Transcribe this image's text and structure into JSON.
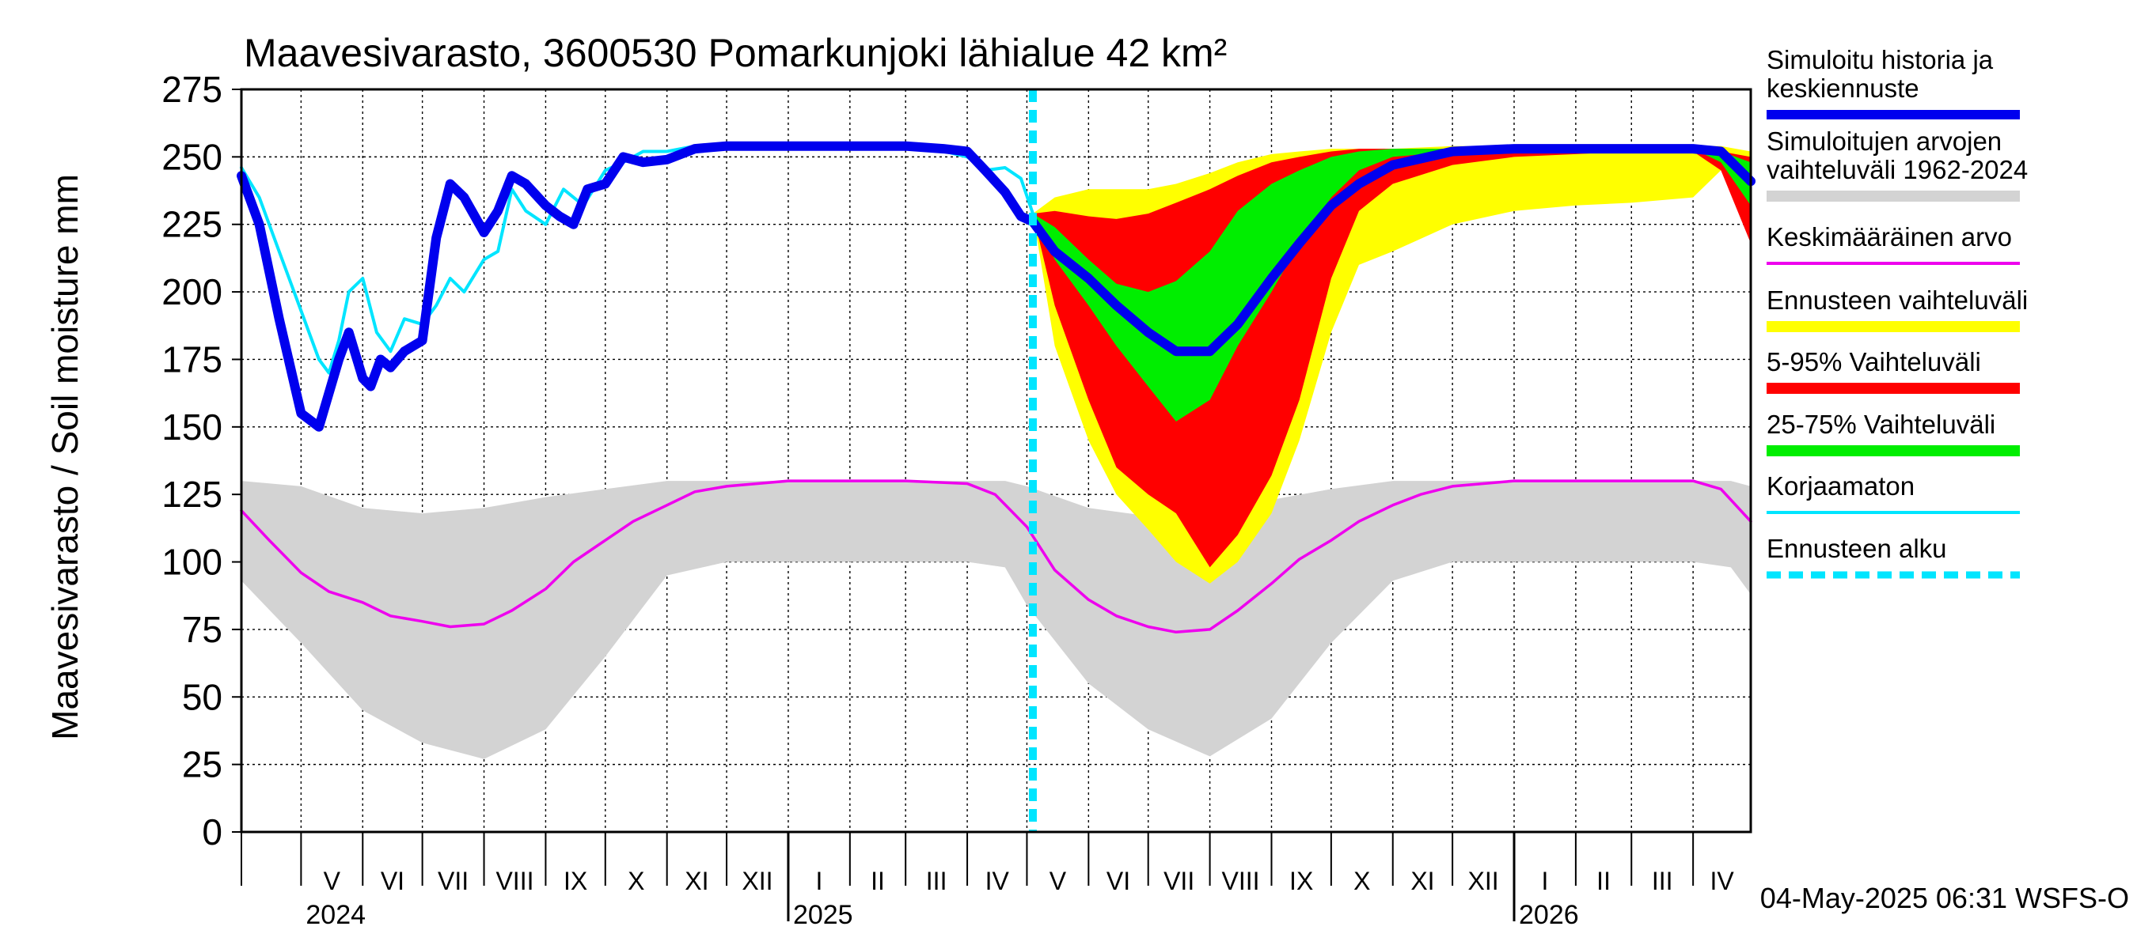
{
  "chart_data": {
    "type": "area",
    "title": "Maavesivarasto, 3600530 Pomarkunjoki lähialue 42 km²",
    "ylabel": "Maavesivarasto / Soil moisture   mm",
    "ylim": [
      0,
      275
    ],
    "yticks": [
      0,
      25,
      50,
      75,
      100,
      125,
      150,
      175,
      200,
      225,
      250,
      275
    ],
    "xlim": [
      "2024-04-01",
      "2026-04-30"
    ],
    "grid": true,
    "legend_position": "right",
    "timestamp": "04-May-2025 06:31 WSFS-O",
    "forecast_start": "2025-05-04",
    "month_labels": [
      {
        "label": "V",
        "start": "2024-05-01"
      },
      {
        "label": "VI",
        "start": "2024-06-01"
      },
      {
        "label": "VII",
        "start": "2024-07-01"
      },
      {
        "label": "VIII",
        "start": "2024-08-01"
      },
      {
        "label": "IX",
        "start": "2024-09-01"
      },
      {
        "label": "X",
        "start": "2024-10-01"
      },
      {
        "label": "XI",
        "start": "2024-11-01"
      },
      {
        "label": "XII",
        "start": "2024-12-01"
      },
      {
        "label": "I",
        "start": "2025-01-01"
      },
      {
        "label": "II",
        "start": "2025-02-01"
      },
      {
        "label": "III",
        "start": "2025-03-01"
      },
      {
        "label": "IV",
        "start": "2025-04-01"
      },
      {
        "label": "V",
        "start": "2025-05-01"
      },
      {
        "label": "VI",
        "start": "2025-06-01"
      },
      {
        "label": "VII",
        "start": "2025-07-01"
      },
      {
        "label": "VIII",
        "start": "2025-08-01"
      },
      {
        "label": "IX",
        "start": "2025-09-01"
      },
      {
        "label": "X",
        "start": "2025-10-01"
      },
      {
        "label": "XI",
        "start": "2025-11-01"
      },
      {
        "label": "XII",
        "start": "2025-12-01"
      },
      {
        "label": "I",
        "start": "2026-01-01"
      },
      {
        "label": "II",
        "start": "2026-02-01"
      },
      {
        "label": "III",
        "start": "2026-03-01"
      },
      {
        "label": "IV",
        "start": "2026-04-01"
      }
    ],
    "year_labels": [
      {
        "label": "2024",
        "date": "2024-05-01"
      },
      {
        "label": "2025",
        "date": "2025-01-01"
      },
      {
        "label": "2026",
        "date": "2026-01-01"
      }
    ],
    "legend": [
      {
        "label": "Simuloitu historia ja keskiennuste",
        "color": "#0000ee",
        "style": "thick-line"
      },
      {
        "label": "Simuloitujen arvojen vaihteluväli 1962-2024",
        "color": "#d3d3d3",
        "style": "band"
      },
      {
        "label": "Keskimääräinen arvo",
        "color": "#ee00ee",
        "style": "line"
      },
      {
        "label": "Ennusteen vaihteluväli",
        "color": "#ffff00",
        "style": "band"
      },
      {
        "label": "5-95% Vaihteluväli",
        "color": "#ff0000",
        "style": "band"
      },
      {
        "label": "25-75% Vaihteluväli",
        "color": "#00ee00",
        "style": "band"
      },
      {
        "label": "Korjaamaton",
        "color": "#00e5ff",
        "style": "line"
      },
      {
        "label": "Ennusteen alku",
        "color": "#00e5ff",
        "style": "dashed-line"
      }
    ],
    "series": [
      {
        "name": "Simuloitujen arvojen vaihteluväli 1962-2024",
        "kind": "band",
        "color": "#d3d3d3",
        "x": [
          "2024-04-01",
          "2024-05-01",
          "2024-06-01",
          "2024-07-01",
          "2024-08-01",
          "2024-09-01",
          "2024-10-01",
          "2024-11-01",
          "2024-12-01",
          "2025-01-01",
          "2025-02-01",
          "2025-03-01",
          "2025-04-01",
          "2025-04-20",
          "2025-05-01",
          "2025-06-01",
          "2025-07-01",
          "2025-08-01",
          "2025-09-01",
          "2025-10-01",
          "2025-11-01",
          "2025-12-01",
          "2026-01-01",
          "2026-02-01",
          "2026-03-01",
          "2026-04-01",
          "2026-04-20",
          "2026-04-30"
        ],
        "low": [
          93,
          70,
          45,
          33,
          27,
          38,
          65,
          95,
          100,
          100,
          100,
          100,
          100,
          98,
          84,
          55,
          38,
          28,
          42,
          70,
          93,
          100,
          100,
          100,
          100,
          100,
          98,
          88
        ],
        "high": [
          130,
          128,
          120,
          118,
          120,
          124,
          127,
          130,
          130,
          130,
          130,
          130,
          130,
          130,
          128,
          120,
          117,
          120,
          123,
          127,
          130,
          130,
          130,
          130,
          130,
          130,
          130,
          128
        ]
      },
      {
        "name": "Keskimääräinen arvo",
        "kind": "line",
        "color": "#ee00ee",
        "x": [
          "2024-04-01",
          "2024-04-15",
          "2024-05-01",
          "2024-05-15",
          "2024-06-01",
          "2024-06-15",
          "2024-07-01",
          "2024-07-15",
          "2024-08-01",
          "2024-08-15",
          "2024-09-01",
          "2024-09-15",
          "2024-10-01",
          "2024-10-15",
          "2024-11-01",
          "2024-11-15",
          "2024-12-01",
          "2025-01-01",
          "2025-02-01",
          "2025-03-01",
          "2025-04-01",
          "2025-04-15",
          "2025-05-01",
          "2025-05-15",
          "2025-06-01",
          "2025-06-15",
          "2025-07-01",
          "2025-07-15",
          "2025-08-01",
          "2025-08-15",
          "2025-09-01",
          "2025-09-15",
          "2025-10-01",
          "2025-10-15",
          "2025-11-01",
          "2025-11-15",
          "2025-12-01",
          "2026-01-01",
          "2026-02-01",
          "2026-03-01",
          "2026-04-01",
          "2026-04-15",
          "2026-04-30"
        ],
        "y": [
          119,
          108,
          96,
          89,
          85,
          80,
          78,
          76,
          77,
          82,
          90,
          100,
          108,
          115,
          121,
          126,
          128,
          130,
          130,
          130,
          129,
          125,
          113,
          97,
          86,
          80,
          76,
          74,
          75,
          82,
          92,
          101,
          108,
          115,
          121,
          125,
          128,
          130,
          130,
          130,
          130,
          127,
          115
        ]
      },
      {
        "name": "Ennusteen vaihteluväli",
        "kind": "band",
        "color": "#ffff00",
        "x": [
          "2025-05-04",
          "2025-05-15",
          "2025-06-01",
          "2025-06-15",
          "2025-07-01",
          "2025-07-15",
          "2025-08-01",
          "2025-08-15",
          "2025-09-01",
          "2025-09-15",
          "2025-10-01",
          "2025-10-15",
          "2025-11-01",
          "2025-12-01",
          "2026-01-01",
          "2026-02-01",
          "2026-03-01",
          "2026-04-01",
          "2026-04-15",
          "2026-04-30"
        ],
        "low": [
          229,
          180,
          145,
          125,
          112,
          100,
          92,
          100,
          118,
          145,
          185,
          210,
          215,
          225,
          230,
          232,
          233,
          235,
          245,
          232
        ],
        "high": [
          229,
          235,
          238,
          238,
          238,
          240,
          244,
          248,
          251,
          252,
          253,
          253,
          253,
          254,
          254,
          254,
          254,
          254,
          254,
          252
        ]
      },
      {
        "name": "5-95% Vaihteluväli",
        "kind": "band",
        "color": "#ff0000",
        "x": [
          "2025-05-04",
          "2025-05-15",
          "2025-06-01",
          "2025-06-15",
          "2025-07-01",
          "2025-07-15",
          "2025-08-01",
          "2025-08-15",
          "2025-09-01",
          "2025-09-15",
          "2025-10-01",
          "2025-10-15",
          "2025-11-01",
          "2025-12-01",
          "2026-01-01",
          "2026-02-01",
          "2026-03-01",
          "2026-04-01",
          "2026-04-15",
          "2026-04-30"
        ],
        "low": [
          229,
          195,
          160,
          135,
          125,
          118,
          98,
          110,
          132,
          160,
          205,
          230,
          240,
          247,
          250,
          251,
          252,
          252,
          245,
          218
        ],
        "high": [
          229,
          230,
          228,
          227,
          229,
          233,
          238,
          243,
          248,
          250,
          252,
          253,
          253,
          253,
          253,
          253,
          253,
          253,
          252,
          250
        ]
      },
      {
        "name": "25-75% Vaihteluväli",
        "kind": "band",
        "color": "#00ee00",
        "x": [
          "2025-05-04",
          "2025-05-15",
          "2025-06-01",
          "2025-06-15",
          "2025-07-01",
          "2025-07-15",
          "2025-08-01",
          "2025-08-15",
          "2025-09-01",
          "2025-09-15",
          "2025-10-01",
          "2025-10-15",
          "2025-11-01",
          "2025-12-01",
          "2026-01-01",
          "2026-02-01",
          "2026-03-01",
          "2026-04-01",
          "2026-04-15",
          "2026-04-30"
        ],
        "low": [
          229,
          212,
          195,
          180,
          165,
          152,
          160,
          180,
          200,
          218,
          235,
          245,
          250,
          252,
          253,
          253,
          253,
          253,
          248,
          232
        ],
        "high": [
          229,
          224,
          212,
          203,
          200,
          204,
          215,
          230,
          240,
          245,
          250,
          252,
          253,
          253,
          253,
          253,
          253,
          253,
          252,
          248
        ]
      },
      {
        "name": "Korjaamaton",
        "kind": "line",
        "color": "#00e5ff",
        "x": [
          "2024-04-01",
          "2024-04-10",
          "2024-04-20",
          "2024-05-01",
          "2024-05-10",
          "2024-05-15",
          "2024-05-20",
          "2024-05-25",
          "2024-06-01",
          "2024-06-08",
          "2024-06-15",
          "2024-06-22",
          "2024-07-01",
          "2024-07-08",
          "2024-07-15",
          "2024-07-22",
          "2024-08-01",
          "2024-08-08",
          "2024-08-15",
          "2024-08-22",
          "2024-09-01",
          "2024-09-10",
          "2024-09-20",
          "2024-10-01",
          "2024-10-10",
          "2024-10-20",
          "2024-11-01",
          "2024-11-15",
          "2024-12-01",
          "2025-01-01",
          "2025-02-01",
          "2025-03-01",
          "2025-03-15",
          "2025-04-01",
          "2025-04-10",
          "2025-04-20",
          "2025-04-28",
          "2025-05-04"
        ],
        "y": [
          246,
          235,
          215,
          193,
          175,
          170,
          182,
          200,
          205,
          185,
          178,
          190,
          188,
          195,
          205,
          200,
          212,
          215,
          238,
          230,
          225,
          238,
          232,
          245,
          248,
          252,
          252,
          254,
          254,
          254,
          254,
          253,
          253,
          250,
          245,
          246,
          242,
          229
        ]
      },
      {
        "name": "Simuloitu historia ja keskiennuste",
        "kind": "line",
        "color": "#0000ee",
        "x": [
          "2024-04-01",
          "2024-04-10",
          "2024-04-20",
          "2024-05-01",
          "2024-05-10",
          "2024-05-20",
          "2024-05-25",
          "2024-06-01",
          "2024-06-05",
          "2024-06-10",
          "2024-06-15",
          "2024-06-22",
          "2024-07-01",
          "2024-07-08",
          "2024-07-15",
          "2024-07-22",
          "2024-08-01",
          "2024-08-08",
          "2024-08-15",
          "2024-08-22",
          "2024-09-01",
          "2024-09-08",
          "2024-09-15",
          "2024-09-22",
          "2024-10-01",
          "2024-10-10",
          "2024-10-20",
          "2024-11-01",
          "2024-11-15",
          "2024-12-01",
          "2025-01-01",
          "2025-02-01",
          "2025-03-01",
          "2025-03-20",
          "2025-04-01",
          "2025-04-10",
          "2025-04-20",
          "2025-04-28",
          "2025-05-04",
          "2025-05-15",
          "2025-06-01",
          "2025-06-15",
          "2025-07-01",
          "2025-07-15",
          "2025-08-01",
          "2025-08-15",
          "2025-09-01",
          "2025-09-15",
          "2025-10-01",
          "2025-10-15",
          "2025-11-01",
          "2025-12-01",
          "2026-01-01",
          "2026-02-01",
          "2026-03-01",
          "2026-04-01",
          "2026-04-15",
          "2026-04-30"
        ],
        "y": [
          243,
          225,
          190,
          155,
          150,
          175,
          185,
          168,
          165,
          175,
          172,
          178,
          182,
          220,
          240,
          235,
          222,
          230,
          243,
          240,
          232,
          228,
          225,
          238,
          240,
          250,
          248,
          249,
          253,
          254,
          254,
          254,
          254,
          253,
          252,
          245,
          237,
          228,
          226,
          215,
          205,
          195,
          185,
          178,
          178,
          188,
          205,
          218,
          232,
          240,
          247,
          252,
          253,
          253,
          253,
          253,
          252,
          241
        ]
      }
    ]
  }
}
